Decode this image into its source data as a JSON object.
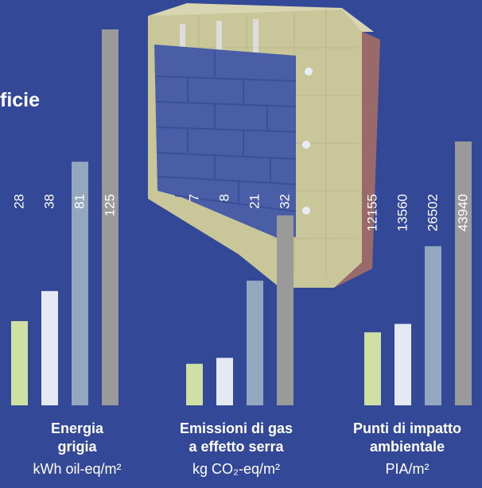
{
  "heading": "ficie",
  "colors": {
    "background": "#334896",
    "series": [
      "#cfe0a4",
      "#e4e9f3",
      "#93a7bf",
      "#9a9a9a"
    ],
    "label": "#ffffff"
  },
  "chart_data": [
    {
      "type": "bar",
      "categories": [
        "1",
        "2",
        "3",
        "4"
      ],
      "values": [
        28,
        38,
        81,
        125
      ],
      "value_labels": [
        "28",
        "38",
        "81",
        "125"
      ],
      "title_lines": [
        "Energia",
        "grigia"
      ],
      "unit": "kWh oil-eq/m²",
      "ylim": [
        0,
        125
      ]
    },
    {
      "type": "bar",
      "categories": [
        "1",
        "2",
        "3",
        "4"
      ],
      "values": [
        7,
        8,
        21,
        32
      ],
      "value_labels": [
        "7",
        "8",
        "21",
        "32"
      ],
      "title_lines": [
        "Emissioni di gas",
        "a effetto serra"
      ],
      "unit": "kg CO₂-eq/m²",
      "ylim": [
        0,
        32
      ]
    },
    {
      "type": "bar",
      "categories": [
        "1",
        "2",
        "3",
        "4"
      ],
      "values": [
        12155,
        13560,
        26502,
        43940
      ],
      "value_labels": [
        "12155",
        "13560",
        "26502",
        "43940"
      ],
      "title_lines": [
        "Punti di impatto",
        "ambientale"
      ],
      "unit": "PIA/m²",
      "ylim": [
        0,
        43940
      ]
    }
  ]
}
